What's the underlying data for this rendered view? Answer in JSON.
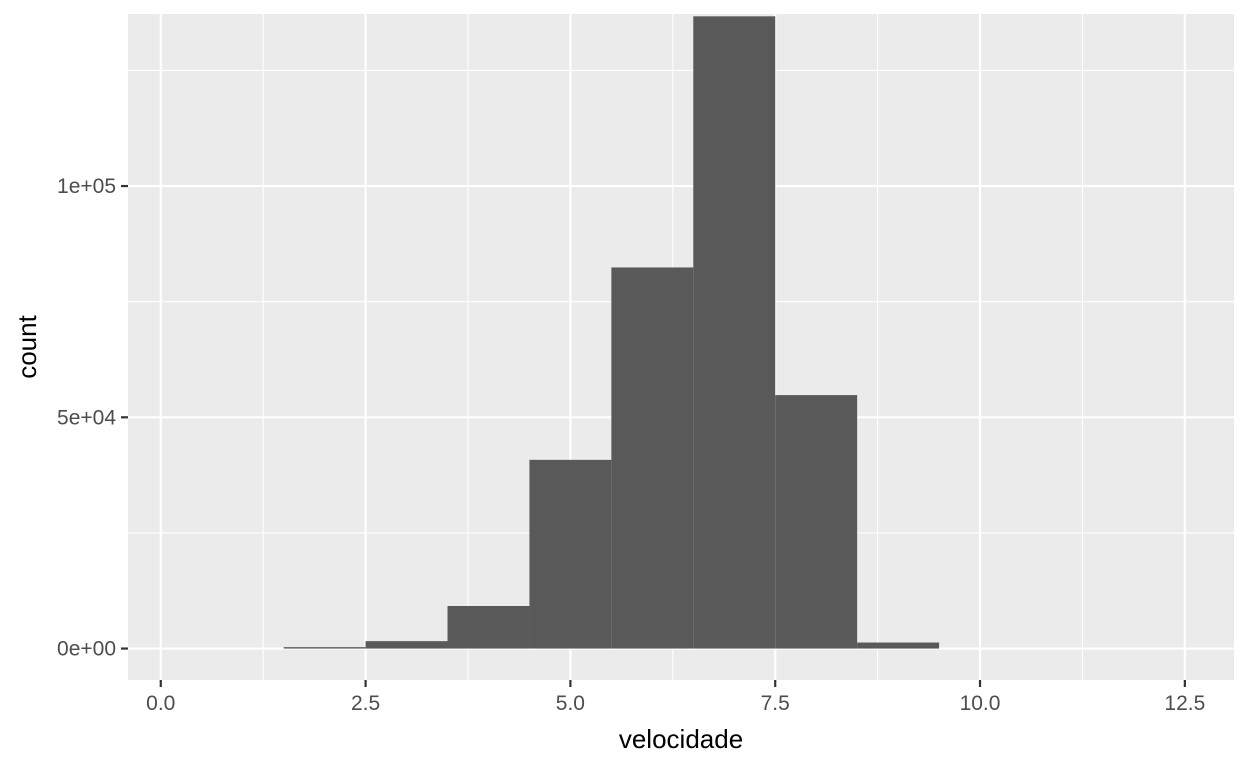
{
  "chart_data": {
    "type": "histogram",
    "xlabel": "velocidade",
    "ylabel": "count",
    "xlim": [
      -0.4,
      13.1
    ],
    "ylim": [
      -6800,
      137200
    ],
    "x_ticks": [
      0.0,
      2.5,
      5.0,
      7.5,
      10.0,
      12.5
    ],
    "x_tick_labels": [
      "0.0",
      "2.5",
      "5.0",
      "7.5",
      "10.0",
      "12.5"
    ],
    "y_ticks": [
      0,
      50000,
      100000
    ],
    "y_tick_labels": [
      "0e+00",
      "5e+04",
      "1e+05"
    ],
    "grid": true,
    "legend": "none",
    "bar_color": "#595959",
    "panel_color": "#ebebeb",
    "bins": [
      {
        "x0": 1.5,
        "x1": 2.5,
        "count": 300
      },
      {
        "x0": 2.5,
        "x1": 3.5,
        "count": 1600
      },
      {
        "x0": 3.5,
        "x1": 4.5,
        "count": 9200
      },
      {
        "x0": 4.5,
        "x1": 5.5,
        "count": 40800
      },
      {
        "x0": 5.5,
        "x1": 6.5,
        "count": 82400
      },
      {
        "x0": 6.5,
        "x1": 7.5,
        "count": 136700
      },
      {
        "x0": 7.5,
        "x1": 8.5,
        "count": 54800
      },
      {
        "x0": 8.5,
        "x1": 9.5,
        "count": 1300
      }
    ]
  }
}
